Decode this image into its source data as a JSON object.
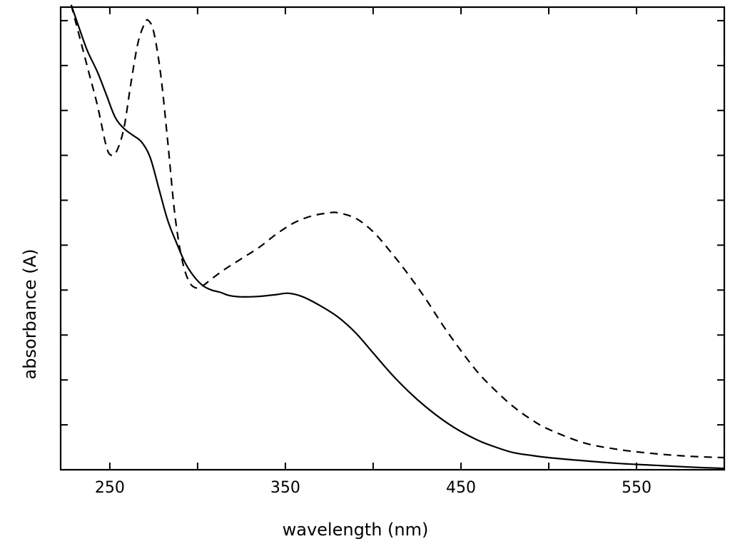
{
  "chart_data": {
    "type": "line",
    "title": "",
    "xlabel": "wavelength (nm)",
    "ylabel": "absorbance (A)",
    "xlim": [
      222,
      600
    ],
    "ylim": [
      0,
      10.3
    ],
    "x_ticks": [
      250,
      300,
      350,
      400,
      450,
      500,
      550,
      600
    ],
    "x_tick_labels": [
      "250",
      "350",
      "450",
      "550"
    ],
    "x_tick_labeled_values": [
      250,
      350,
      450,
      550
    ],
    "y_ticks": [
      1,
      2,
      3,
      4,
      5,
      6,
      7,
      8,
      9,
      10
    ],
    "y_tick_labels": [],
    "grid": false,
    "legend": null,
    "series": [
      {
        "style": "solid",
        "color": "#000000",
        "x": [
          228,
          232,
          237,
          243,
          248,
          253,
          258,
          263,
          268,
          273,
          278,
          283,
          288,
          293,
          298,
          303,
          308,
          313,
          318,
          325,
          335,
          345,
          352,
          360,
          370,
          380,
          390,
          400,
          410,
          420,
          430,
          440,
          450,
          460,
          470,
          480,
          490,
          500,
          520,
          540,
          560,
          580,
          600
        ],
        "y": [
          10.35,
          9.9,
          9.35,
          8.85,
          8.35,
          7.85,
          7.6,
          7.45,
          7.3,
          6.95,
          6.25,
          5.55,
          5.05,
          4.6,
          4.3,
          4.1,
          4.0,
          3.95,
          3.88,
          3.85,
          3.86,
          3.9,
          3.93,
          3.85,
          3.65,
          3.4,
          3.05,
          2.6,
          2.15,
          1.75,
          1.4,
          1.1,
          0.85,
          0.65,
          0.5,
          0.38,
          0.32,
          0.27,
          0.2,
          0.14,
          0.1,
          0.06,
          0.03
        ]
      },
      {
        "style": "dashed",
        "color": "#000000",
        "x": [
          228,
          233,
          238,
          243,
          248,
          251,
          254,
          258,
          262,
          266,
          270,
          272,
          275,
          279,
          283,
          287,
          291,
          295,
          299,
          303,
          308,
          315,
          325,
          335,
          345,
          355,
          365,
          375,
          380,
          390,
          400,
          410,
          420,
          430,
          440,
          450,
          460,
          470,
          480,
          490,
          500,
          520,
          540,
          560,
          580,
          600
        ],
        "y": [
          10.35,
          9.6,
          8.85,
          8.1,
          7.2,
          7.0,
          7.1,
          7.6,
          8.6,
          9.5,
          9.95,
          10.0,
          9.75,
          8.8,
          7.3,
          5.7,
          4.7,
          4.2,
          4.05,
          4.1,
          4.25,
          4.45,
          4.7,
          4.95,
          5.25,
          5.5,
          5.65,
          5.72,
          5.72,
          5.6,
          5.3,
          4.85,
          4.35,
          3.8,
          3.2,
          2.65,
          2.15,
          1.75,
          1.4,
          1.12,
          0.9,
          0.6,
          0.45,
          0.36,
          0.3,
          0.27
        ]
      }
    ]
  }
}
